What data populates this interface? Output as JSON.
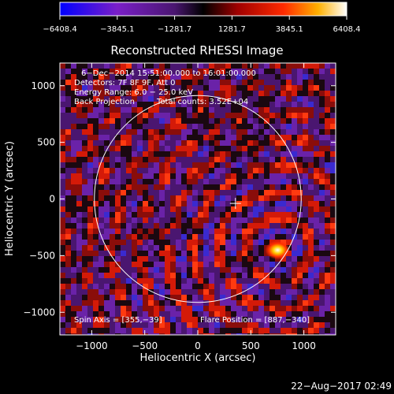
{
  "chart_data": {
    "type": "heatmap",
    "title": "Reconstructed RHESSI Image",
    "xlabel": "Heliocentric X (arcsec)",
    "ylabel": "Heliocentric Y (arcsec)",
    "xlim": [
      -1300,
      1300
    ],
    "ylim": [
      -1200,
      1200
    ],
    "x_ticks": [
      -1000,
      -500,
      0,
      500,
      1000
    ],
    "y_ticks": [
      -1000,
      -500,
      0,
      500,
      1000
    ],
    "x_tick_labels": [
      "−1000",
      "−500",
      "0",
      "500",
      "1000"
    ],
    "y_tick_labels": [
      "−1000",
      "−500",
      "0",
      "500",
      "1000"
    ],
    "colorbar": {
      "ticks": [
        -6408.4,
        -3845.1,
        -1281.7,
        1281.7,
        3845.1,
        6408.4
      ],
      "tick_labels": [
        "−6408.4",
        "−3845.1",
        "−1281.7",
        "1281.7",
        "3845.1",
        "6408.4"
      ],
      "colors": [
        "#0000ff",
        "#7a1fc8",
        "#5a1b8a",
        "#000000",
        "#a00000",
        "#ff2a00",
        "#ffb000",
        "#ffffff"
      ]
    },
    "annotations": {
      "time_range": "6−Dec−2014 15:51:00.000 to 16:01:00.000",
      "detectors": "Detectors: 7F 8F 9F, Att 0",
      "energy": "Energy Range: 6.0 − 25.0 keV",
      "method": "Back Projection",
      "counts": "Total counts: 3.52E+04",
      "spin_axis": "Spin Axis = [355,−39]",
      "flare_position": "Flare Position = [887,−340]"
    },
    "solar_limb_radius_arcsec": 975,
    "disk_center": [
      0,
      0
    ],
    "crosshair_position": [
      355,
      -39
    ],
    "bright_source_position": [
      887,
      -340
    ]
  },
  "timestamp": "22−Aug−2017 02:49"
}
